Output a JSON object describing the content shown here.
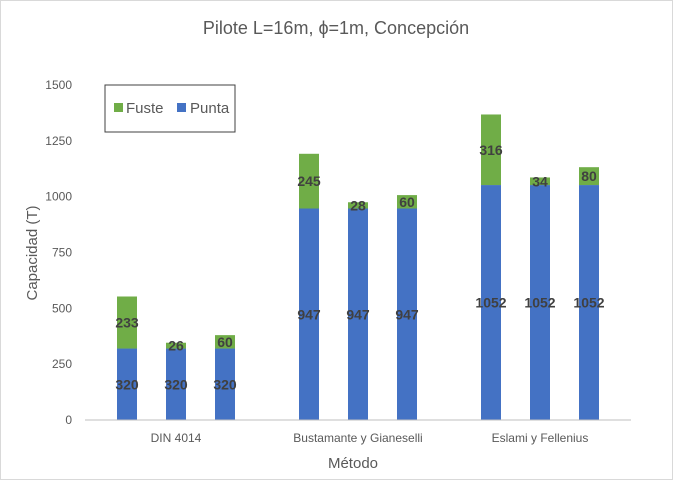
{
  "chart_data": {
    "type": "bar",
    "stacked": true,
    "title": "Pilote L=16m, ϕ=1m, Concepción",
    "xlabel": "Método",
    "ylabel": "Capacidad (T)",
    "ylim": [
      0,
      1500
    ],
    "yticks": [
      "0",
      "250",
      "500",
      "750",
      "1000",
      "1250",
      "1500"
    ],
    "grid": false,
    "legend_position": "top-left",
    "groups": [
      {
        "label": "DIN 4014",
        "punta": [
          320,
          320,
          320
        ],
        "fuste": [
          233,
          26,
          60
        ]
      },
      {
        "label": "Bustamante y Gianeselli",
        "punta": [
          947,
          947,
          947
        ],
        "fuste": [
          245,
          28,
          60
        ]
      },
      {
        "label": "Eslami y Fellenius",
        "punta": [
          1052,
          1052,
          1052
        ],
        "fuste": [
          316,
          34,
          80
        ]
      }
    ],
    "series": [
      {
        "name": "Fuste",
        "color": "#70ad47"
      },
      {
        "name": "Punta",
        "color": "#4472c4"
      }
    ],
    "colors": {
      "axis": "#bfbfbf",
      "text": "#595959",
      "label": "#404040"
    }
  }
}
